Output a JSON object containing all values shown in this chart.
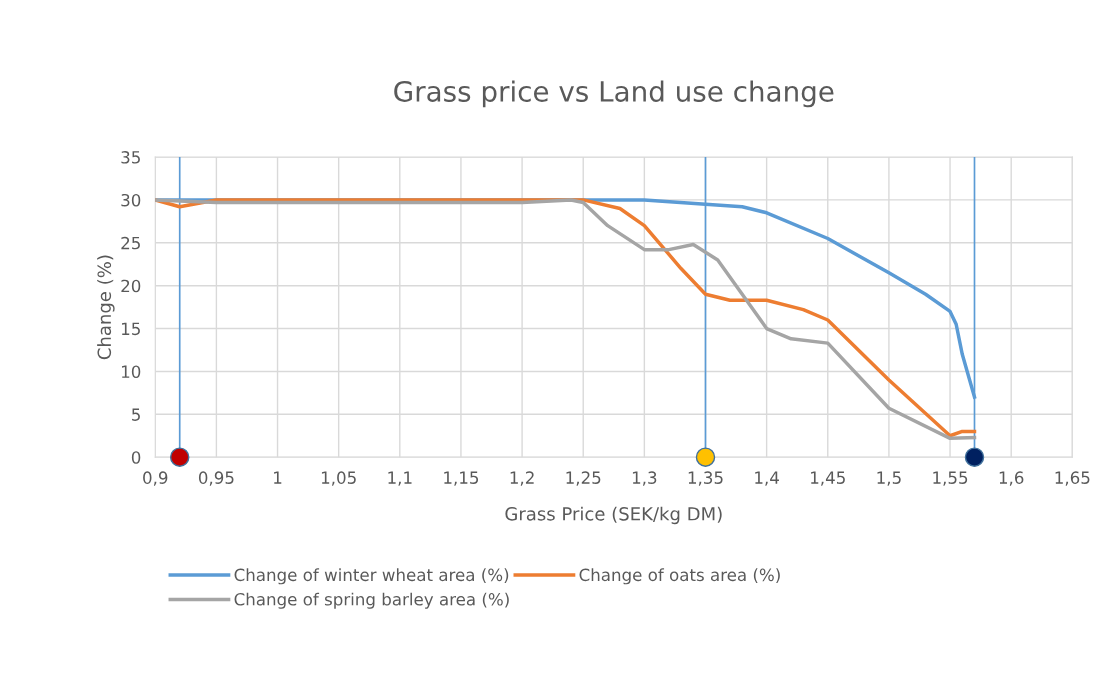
{
  "chart_data": {
    "type": "line",
    "title": "Grass price vs Land use change",
    "xlabel": "Grass Price (SEK/kg DM)",
    "ylabel": "Change (%)",
    "xlim": [
      0.9,
      1.65
    ],
    "xticks": [
      {
        "value": 0.9,
        "label": "0,9"
      },
      {
        "value": 0.95,
        "label": "0,95"
      },
      {
        "value": 1,
        "label": "1"
      },
      {
        "value": 1.05,
        "label": "1,05"
      },
      {
        "value": 1.1,
        "label": "1,1"
      },
      {
        "value": 1.15,
        "label": "1,15"
      },
      {
        "value": 1.2,
        "label": "1,2"
      },
      {
        "value": 1.25,
        "label": "1,25"
      },
      {
        "value": 1.3,
        "label": "1,3"
      },
      {
        "value": 1.35,
        "label": "1,35"
      },
      {
        "value": 1.4,
        "label": "1,4"
      },
      {
        "value": 1.45,
        "label": "1,45"
      },
      {
        "value": 1.5,
        "label": "1,5"
      },
      {
        "value": 1.55,
        "label": "1,55"
      },
      {
        "value": 1.6,
        "label": "1,6"
      },
      {
        "value": 1.65,
        "label": "1,65"
      }
    ],
    "ylim": [
      0,
      35
    ],
    "yticks": [
      0,
      5,
      10,
      15,
      20,
      25,
      30,
      35
    ],
    "grid": true,
    "legend": "bottom",
    "marker": "none",
    "line_style": "solid",
    "series": [
      {
        "name": "Change of winter wheat area (%)",
        "color": "#5b9bd5",
        "x": [
          0.9,
          1.0,
          1.1,
          1.2,
          1.25,
          1.3,
          1.35,
          1.38,
          1.4,
          1.45,
          1.5,
          1.53,
          1.55,
          1.555,
          1.56,
          1.57
        ],
        "values": [
          30,
          30,
          30,
          30,
          30,
          30,
          29.5,
          29.2,
          28.5,
          25.5,
          21.5,
          19,
          17,
          15.5,
          12,
          7
        ]
      },
      {
        "name": "Change of oats area (%)",
        "color": "#ed7d31",
        "x": [
          0.9,
          0.92,
          0.95,
          1.0,
          1.1,
          1.2,
          1.25,
          1.28,
          1.3,
          1.33,
          1.35,
          1.37,
          1.4,
          1.43,
          1.45,
          1.5,
          1.55,
          1.56,
          1.57
        ],
        "values": [
          30,
          29.2,
          30,
          30,
          30,
          30,
          30,
          29,
          27,
          22,
          19,
          18.3,
          18.3,
          17.2,
          16,
          9,
          2.5,
          3,
          3
        ]
      },
      {
        "name": "Change of spring barley area (%)",
        "color": "#a5a5a5",
        "x": [
          0.9,
          0.95,
          1.0,
          1.1,
          1.2,
          1.24,
          1.25,
          1.27,
          1.3,
          1.32,
          1.34,
          1.36,
          1.4,
          1.42,
          1.45,
          1.5,
          1.55,
          1.57
        ],
        "values": [
          30,
          29.7,
          29.7,
          29.7,
          29.7,
          30,
          29.7,
          27,
          24.2,
          24.2,
          24.8,
          23,
          15,
          13.8,
          13.3,
          5.7,
          2.2,
          2.3
        ]
      },
      {
        "type": "scatter",
        "x": [
          0.92,
          1.35,
          1.57
        ],
        "values": [
          0,
          0,
          0
        ],
        "colors": [
          "#c00000",
          "#ffc000",
          "#002060"
        ],
        "marker": "circle"
      }
    ],
    "ref_lines": [
      {
        "axis": "x",
        "value": 0.92,
        "color": "#5b9bd5",
        "line_style": "solid"
      },
      {
        "axis": "x",
        "value": 1.35,
        "color": "#5b9bd5",
        "line_style": "solid"
      },
      {
        "axis": "x",
        "value": 1.57,
        "color": "#5b9bd5",
        "line_style": "solid"
      }
    ]
  }
}
